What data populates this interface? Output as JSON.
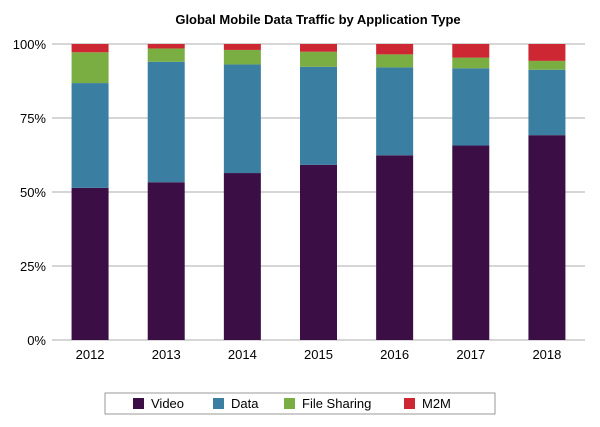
{
  "chart_data": {
    "type": "bar",
    "stacked": true,
    "title": "Global Mobile Data Traffic by Application Type",
    "xlabel": "",
    "ylabel": "",
    "ylim": [
      0,
      100
    ],
    "yticks": [
      "0%",
      "25%",
      "50%",
      "75%",
      "100%"
    ],
    "grid": true,
    "legend_position": "bottom",
    "categories": [
      "2012",
      "2013",
      "2014",
      "2015",
      "2016",
      "2017",
      "2018"
    ],
    "series": [
      {
        "name": "Video",
        "color": "#3b0f45",
        "values": [
          51.4,
          53.3,
          56.4,
          59.2,
          62.4,
          65.7,
          69.2
        ]
      },
      {
        "name": "Data",
        "color": "#3a7ea1",
        "values": [
          35.4,
          40.7,
          36.7,
          33.1,
          29.7,
          26.1,
          22.1
        ]
      },
      {
        "name": "File Sharing",
        "color": "#7aad42",
        "values": [
          10.4,
          4.5,
          4.9,
          5.1,
          4.4,
          3.6,
          3.0
        ]
      },
      {
        "name": "M2M",
        "color": "#cc2732",
        "values": [
          2.8,
          1.5,
          2.0,
          2.6,
          3.5,
          4.6,
          5.7
        ]
      }
    ]
  }
}
